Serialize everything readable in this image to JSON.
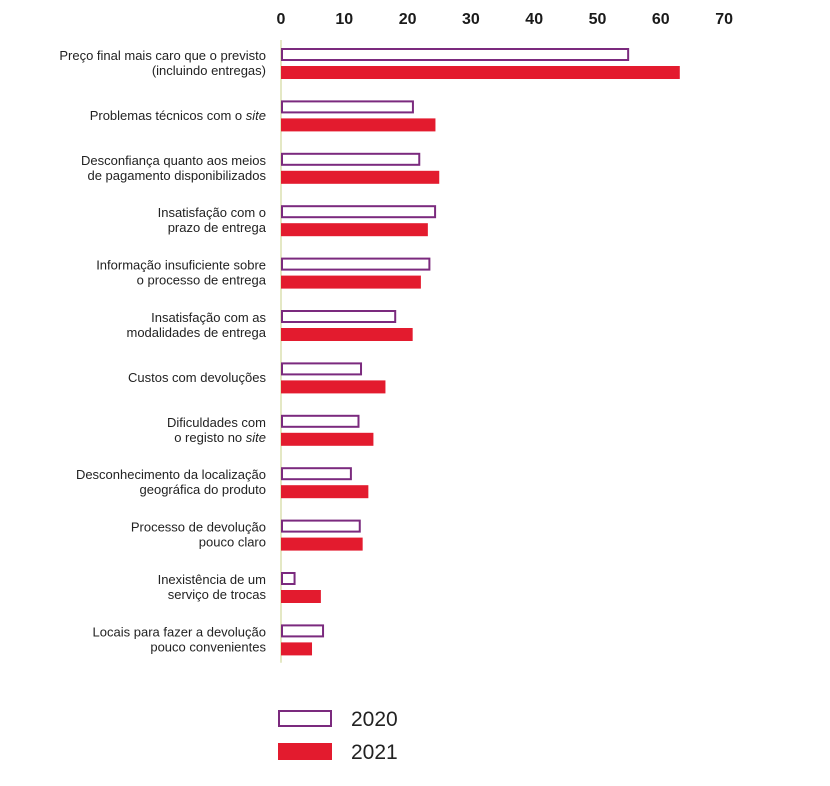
{
  "chart_data": {
    "type": "bar",
    "orientation": "horizontal",
    "title": "",
    "xlabel": "",
    "ylabel": "",
    "xlim": [
      0,
      70
    ],
    "ticks": [
      "0",
      "10",
      "20",
      "30",
      "40",
      "50",
      "60",
      "70"
    ],
    "grid": false,
    "legend_position": "bottom",
    "categories": [
      {
        "lines": [
          {
            "t": "Preço final mais caro que o previsto"
          },
          {
            "t": "(incluindo entregas)"
          }
        ]
      },
      {
        "lines": [
          {
            "t": "Problemas técnicos com o ",
            "it": "site"
          }
        ]
      },
      {
        "lines": [
          {
            "t": "Desconfiança quanto aos meios"
          },
          {
            "t": "de pagamento disponibilizados"
          }
        ]
      },
      {
        "lines": [
          {
            "t": "Insatisfação com o"
          },
          {
            "t": "prazo de entrega"
          }
        ]
      },
      {
        "lines": [
          {
            "t": "Informação insuficiente sobre"
          },
          {
            "t": "o processo de entrega"
          }
        ]
      },
      {
        "lines": [
          {
            "t": "Insatisfação com as"
          },
          {
            "t": "modalidades de entrega"
          }
        ]
      },
      {
        "lines": [
          {
            "t": "Custos com devoluções"
          }
        ]
      },
      {
        "lines": [
          {
            "t": "Dificuldades com"
          },
          {
            "t": "o registo no ",
            "it": "site"
          }
        ]
      },
      {
        "lines": [
          {
            "t": "Desconhecimento da localização"
          },
          {
            "t": "geográfica do produto"
          }
        ]
      },
      {
        "lines": [
          {
            "t": "Processo de devolução"
          },
          {
            "t": "pouco claro"
          }
        ]
      },
      {
        "lines": [
          {
            "t": "Inexistência de um"
          },
          {
            "t": "serviço de trocas"
          }
        ]
      },
      {
        "lines": [
          {
            "t": "Locais para fazer a devolução"
          },
          {
            "t": "pouco convenientes"
          }
        ]
      }
    ],
    "series": [
      {
        "name": "2020",
        "style": "outline",
        "color": "#7b2a7e",
        "values": [
          55,
          21,
          22,
          24.5,
          23.6,
          18.2,
          12.8,
          12.4,
          11.2,
          12.6,
          2.3,
          6.8
        ]
      },
      {
        "name": "2021",
        "style": "filled",
        "color": "#e31b2e",
        "values": [
          63,
          24.4,
          25,
          23.2,
          22.1,
          20.8,
          16.5,
          14.6,
          13.8,
          12.9,
          6.3,
          4.9
        ]
      }
    ],
    "colors": {
      "outline": "#7b2a7e",
      "filled": "#e31b2e",
      "axis": "#c8d28a"
    }
  }
}
